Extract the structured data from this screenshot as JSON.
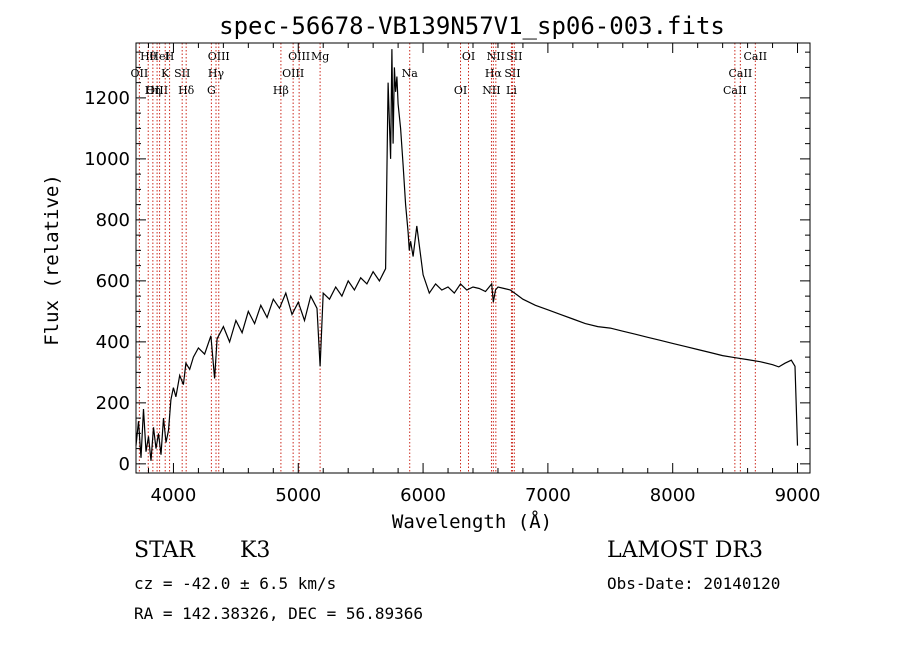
{
  "chart_data": {
    "type": "line",
    "title": "spec-56678-VB139N57V1_sp06-003.fits",
    "xlabel": "Wavelength (Å)",
    "ylabel": "Flux (relative)",
    "xlim": [
      3700,
      9100
    ],
    "ylim": [
      -30,
      1380
    ],
    "x_ticks": [
      4000,
      5000,
      6000,
      7000,
      8000,
      9000
    ],
    "y_ticks": [
      0,
      200,
      400,
      600,
      800,
      1000,
      1200
    ],
    "grid": false,
    "series": [
      {
        "name": "flux",
        "x": [
          3700,
          3720,
          3740,
          3760,
          3780,
          3800,
          3820,
          3840,
          3860,
          3880,
          3900,
          3920,
          3940,
          3960,
          3980,
          4000,
          4020,
          4050,
          4080,
          4100,
          4130,
          4160,
          4200,
          4250,
          4300,
          4330,
          4350,
          4400,
          4450,
          4500,
          4550,
          4600,
          4650,
          4700,
          4750,
          4800,
          4850,
          4900,
          4950,
          5000,
          5050,
          5100,
          5150,
          5175,
          5200,
          5250,
          5300,
          5350,
          5400,
          5450,
          5500,
          5550,
          5600,
          5650,
          5700,
          5720,
          5740,
          5750,
          5760,
          5770,
          5780,
          5790,
          5800,
          5820,
          5840,
          5860,
          5880,
          5890,
          5900,
          5920,
          5950,
          6000,
          6050,
          6100,
          6150,
          6200,
          6250,
          6300,
          6350,
          6400,
          6450,
          6500,
          6550,
          6563,
          6580,
          6600,
          6650,
          6700,
          6750,
          6800,
          6900,
          7000,
          7100,
          7200,
          7300,
          7400,
          7500,
          7600,
          7700,
          7800,
          7900,
          8000,
          8100,
          8200,
          8300,
          8400,
          8500,
          8600,
          8700,
          8800,
          8850,
          8900,
          8950,
          8980,
          9000
        ],
        "y": [
          60,
          140,
          20,
          180,
          40,
          90,
          10,
          120,
          50,
          100,
          30,
          150,
          70,
          110,
          210,
          250,
          220,
          290,
          260,
          330,
          310,
          350,
          380,
          360,
          420,
          280,
          410,
          450,
          400,
          470,
          430,
          500,
          460,
          520,
          480,
          540,
          510,
          560,
          490,
          530,
          470,
          550,
          510,
          320,
          560,
          540,
          580,
          550,
          600,
          570,
          610,
          590,
          630,
          600,
          640,
          1250,
          1000,
          1360,
          1050,
          1300,
          1220,
          1270,
          1180,
          1100,
          980,
          850,
          760,
          700,
          730,
          680,
          780,
          620,
          560,
          590,
          570,
          580,
          560,
          590,
          570,
          580,
          575,
          565,
          590,
          530,
          570,
          580,
          575,
          570,
          555,
          540,
          520,
          505,
          490,
          475,
          460,
          450,
          445,
          435,
          425,
          415,
          405,
          395,
          385,
          375,
          365,
          355,
          348,
          342,
          335,
          325,
          318,
          330,
          340,
          320,
          60
        ]
      }
    ],
    "lines": [
      {
        "label": "Hθ",
        "wavelength": 3798
      },
      {
        "label": "OII",
        "wavelength": 3727
      },
      {
        "label": "OIII",
        "wavelength": 3869
      },
      {
        "label": "HeI",
        "wavelength": 3889
      },
      {
        "label": "K",
        "wavelength": 3934
      },
      {
        "label": "Hη",
        "wavelength": 3835
      },
      {
        "label": "H",
        "wavelength": 3969
      },
      {
        "label": "SII",
        "wavelength": 4070
      },
      {
        "label": "Hδ",
        "wavelength": 4102
      },
      {
        "label": "OIII",
        "wavelength": 4363
      },
      {
        "label": "Hγ",
        "wavelength": 4341
      },
      {
        "label": "G",
        "wavelength": 4304
      },
      {
        "label": "OIII",
        "wavelength": 5007
      },
      {
        "label": "OIII",
        "wavelength": 4959
      },
      {
        "label": "Hβ",
        "wavelength": 4861
      },
      {
        "label": "Mg",
        "wavelength": 5175
      },
      {
        "label": "Na",
        "wavelength": 5893
      },
      {
        "label": "OI",
        "wavelength": 6300
      },
      {
        "label": "OI",
        "wavelength": 6364
      },
      {
        "label": "Hα",
        "wavelength": 6563
      },
      {
        "label": "NII",
        "wavelength": 6548
      },
      {
        "label": "NII",
        "wavelength": 6583
      },
      {
        "label": "SII",
        "wavelength": 6716
      },
      {
        "label": "Li",
        "wavelength": 6708
      },
      {
        "label": "SII",
        "wavelength": 6731
      },
      {
        "label": "CaII",
        "wavelength": 8542
      },
      {
        "label": "CaII",
        "wavelength": 8498
      },
      {
        "label": "CaII",
        "wavelength": 8662
      }
    ]
  },
  "info": {
    "class_label": "STAR",
    "subclass": "K3",
    "survey": "LAMOST DR3",
    "cz_text": "cz = -42.0 ± 6.5 km/s",
    "obs_date_text": "Obs-Date: 20140120",
    "radec_text": "RA = 142.38326, DEC =  56.89366"
  }
}
